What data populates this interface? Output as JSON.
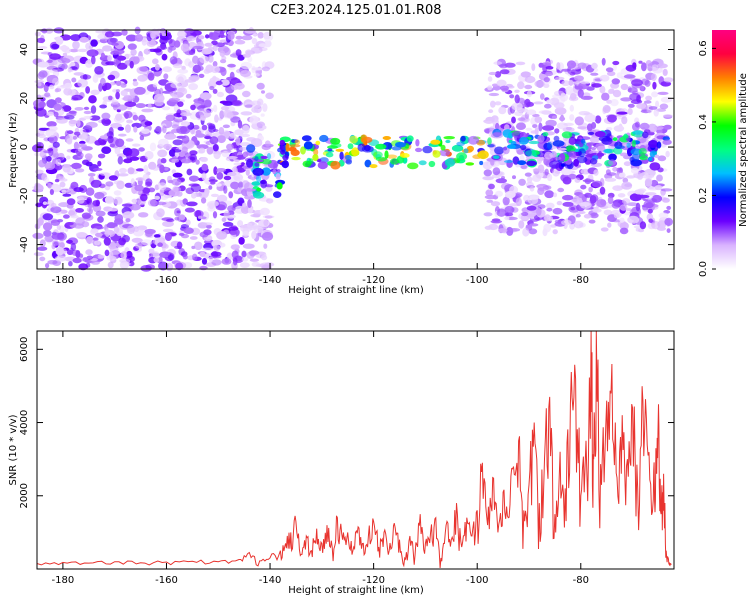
{
  "figure_title": "C2E3.2024.125.01.01.R08",
  "chart_data": [
    {
      "type": "heatmap",
      "xlabel": "Height of straight line (km)",
      "ylabel": "Frequency (Hz)",
      "xlim": [
        -185,
        -62
      ],
      "ylim": [
        -50,
        48
      ],
      "x_ticks": [
        -180,
        -160,
        -140,
        -120,
        -100,
        -80
      ],
      "y_ticks": [
        -40,
        -20,
        0,
        20,
        40
      ],
      "x_tick_labels": [
        "-180",
        "-160",
        "-140",
        "-120",
        "-100",
        "-80"
      ],
      "y_tick_labels": [
        "-40",
        "-20",
        "0",
        "20",
        "40"
      ],
      "colorbar": {
        "label": "Normalized spectral amplitude",
        "range": [
          0.0,
          0.65
        ],
        "ticks": [
          0.0,
          0.2,
          0.4,
          0.6
        ],
        "tick_labels": [
          "0.0",
          "0.2",
          "0.4",
          "0.6"
        ],
        "colormap": [
          "#ffffff",
          "#d9b3ff",
          "#6a00ff",
          "#0000ff",
          "#00bfff",
          "#00ff80",
          "#00ff00",
          "#ffff00",
          "#ff8000",
          "#ff0040",
          "#ff0080"
        ]
      },
      "regions": [
        {
          "x_range": [
            -185,
            -145
          ],
          "freq_range": [
            -50,
            48
          ],
          "amplitude": 0.08
        },
        {
          "x_range": [
            -145,
            -140
          ],
          "freq_range": [
            -50,
            48
          ],
          "amplitude": 0.05
        },
        {
          "x_range": [
            -145,
            -138
          ],
          "freq_range": [
            -20,
            0
          ],
          "amplitude": 0.22
        },
        {
          "x_range": [
            -138,
            -98
          ],
          "freq_range": [
            -8,
            4
          ],
          "amplitude": 0.3
        },
        {
          "x_range": [
            -98,
            -63
          ],
          "freq_range": [
            -35,
            35
          ],
          "amplitude": 0.07
        },
        {
          "x_range": [
            -98,
            -63
          ],
          "freq_range": [
            -8,
            6
          ],
          "amplitude": 0.2
        }
      ]
    },
    {
      "type": "line",
      "xlabel": "Height of straight line (km)",
      "ylabel": "SNR (10 * v/v)",
      "xlim": [
        -185,
        -62
      ],
      "ylim": [
        0,
        6500
      ],
      "x_ticks": [
        -180,
        -160,
        -140,
        -120,
        -100,
        -80
      ],
      "y_ticks": [
        2000,
        4000,
        6000
      ],
      "x_tick_labels": [
        "-180",
        "-160",
        "-140",
        "-120",
        "-100",
        "-80"
      ],
      "y_tick_labels": [
        "2000",
        "4000",
        "6000"
      ],
      "color": "#e8332e",
      "x": [
        -185,
        -180,
        -175,
        -170,
        -165,
        -160,
        -155,
        -150,
        -146,
        -144,
        -142,
        -140,
        -138,
        -137,
        -136,
        -135,
        -134,
        -133,
        -132,
        -131,
        -130,
        -129,
        -128,
        -127,
        -126,
        -125,
        -124,
        -123,
        -122,
        -121,
        -120,
        -119,
        -118,
        -117,
        -116,
        -115,
        -114,
        -113,
        -112,
        -111,
        -110,
        -109,
        -108,
        -107,
        -106,
        -105,
        -104,
        -103,
        -102,
        -101,
        -100,
        -99,
        -98,
        -97,
        -96,
        -95,
        -94,
        -93,
        -92,
        -91,
        -90,
        -89,
        -88,
        -87,
        -86,
        -85,
        -84,
        -83,
        -82,
        -81,
        -80,
        -79,
        -78,
        -77.5,
        -77,
        -76,
        -75,
        -74,
        -73,
        -72,
        -71,
        -70,
        -69,
        -68,
        -67,
        -66,
        -65.5,
        -65,
        -64.5,
        -64,
        -63.5,
        -63,
        -62.5
      ],
      "y": [
        150,
        180,
        160,
        200,
        170,
        190,
        210,
        200,
        260,
        450,
        220,
        300,
        500,
        700,
        1000,
        1300,
        400,
        900,
        500,
        1100,
        700,
        1200,
        600,
        1400,
        800,
        1000,
        500,
        1150,
        700,
        900,
        1300,
        600,
        1000,
        500,
        1250,
        800,
        300,
        900,
        400,
        1500,
        700,
        1000,
        1400,
        300,
        1200,
        800,
        1800,
        600,
        1400,
        900,
        1600,
        2900,
        1200,
        2500,
        1000,
        2100,
        1400,
        2800,
        3500,
        1600,
        2300,
        4000,
        1800,
        3000,
        4700,
        1500,
        3200,
        2200,
        4500,
        5200,
        2000,
        3500,
        6500,
        3000,
        6500,
        2300,
        4600,
        5600,
        2500,
        4200,
        3000,
        4400,
        2200,
        4600,
        3100,
        1900,
        3300,
        4500,
        1500,
        2600,
        500,
        150,
        120
      ]
    }
  ]
}
